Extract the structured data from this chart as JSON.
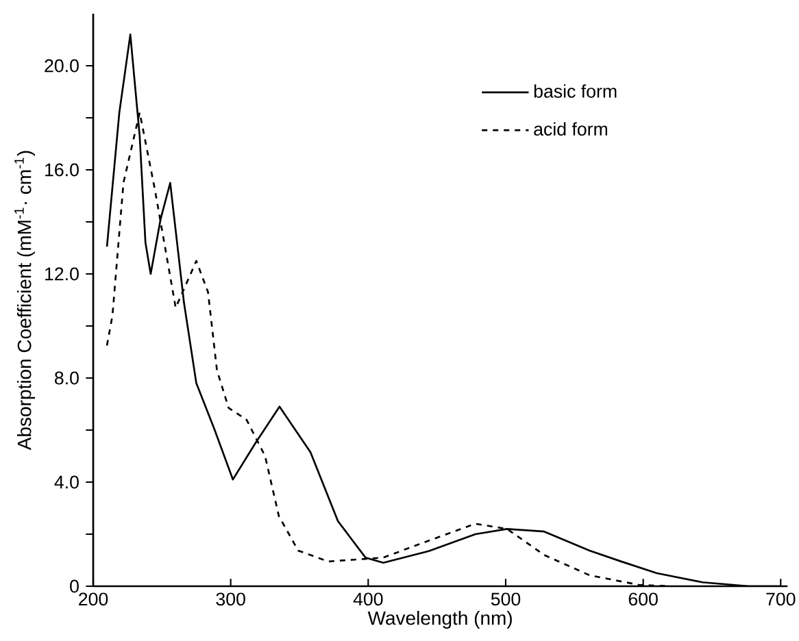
{
  "chart_data": {
    "type": "line",
    "xlabel": "Wavelength (nm)",
    "ylabel": "Absorption Coefficient (mM$^{-1}$· cm$^{-1}$)",
    "xlim": [
      200,
      705
    ],
    "ylim": [
      0,
      22
    ],
    "xticks": [
      200,
      300,
      400,
      500,
      600,
      700
    ],
    "yticks": [
      0,
      {
        "value": 2,
        "label": null
      },
      {
        "value": 4,
        "label": "4.0"
      },
      {
        "value": 6,
        "label": null
      },
      {
        "value": 8,
        "label": "8.0"
      },
      {
        "value": 10,
        "label": null
      },
      {
        "value": 12,
        "label": "12.0"
      },
      {
        "value": 14,
        "label": null
      },
      {
        "value": 16,
        "label": "16.0"
      },
      {
        "value": 18,
        "label": null
      },
      {
        "value": 20,
        "label": "20.0"
      }
    ],
    "legend": "top right",
    "marker": "none",
    "series": [
      {
        "name": "basic form",
        "color": "#000000",
        "line_style": "solid",
        "x": [
          210,
          219,
          227,
          233.8,
          238,
          241.8,
          249,
          256,
          266,
          275,
          288,
          301.6,
          318,
          335.5,
          358,
          378,
          398,
          411,
          444,
          478,
          501,
          528,
          561,
          584,
          610,
          643,
          677,
          700
        ],
        "values": [
          13.05,
          18.2,
          21.2,
          17.3,
          13.2,
          12.0,
          14.1,
          15.5,
          10.9,
          7.8,
          6.05,
          4.1,
          5.5,
          6.9,
          5.15,
          2.5,
          1.1,
          0.9,
          1.35,
          2.0,
          2.2,
          2.1,
          1.37,
          0.95,
          0.5,
          0.15,
          0.0,
          0.0
        ]
      },
      {
        "name": "acid form",
        "color": "#000000",
        "line_style": "dashed",
        "x": [
          210,
          214,
          222,
          233.8,
          245,
          260,
          275,
          283.5,
          290,
          298.5,
          311.5,
          325,
          335,
          349,
          371,
          398,
          411,
          444,
          478,
          501,
          528,
          561,
          597,
          620
        ],
        "values": [
          9.25,
          10.4,
          15.5,
          18.2,
          15.2,
          10.7,
          12.5,
          11.3,
          8.3,
          6.85,
          6.4,
          5.0,
          2.7,
          1.37,
          0.95,
          1.05,
          1.1,
          1.75,
          2.4,
          2.2,
          1.2,
          0.42,
          0.05,
          0.0
        ]
      }
    ]
  }
}
